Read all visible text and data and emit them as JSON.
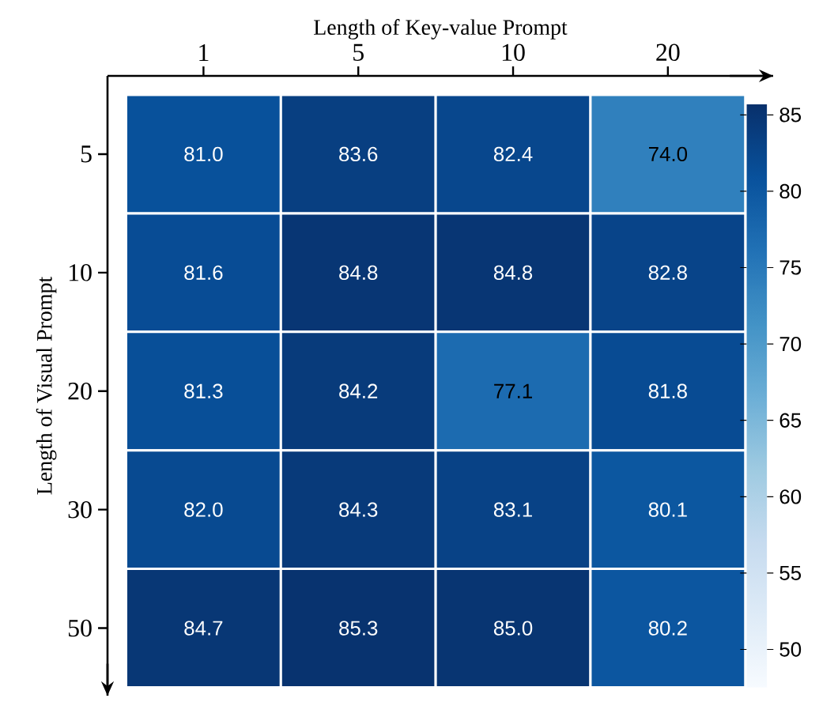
{
  "chart_data": {
    "type": "heatmap",
    "xlabel": "Length of Key-value Prompt",
    "ylabel": "Length of Visual Prompt",
    "categories": [
      "1",
      "5",
      "10",
      "20"
    ],
    "y_categories": [
      "5",
      "10",
      "20",
      "30",
      "50"
    ],
    "cells": [
      [
        81.0,
        83.6,
        82.4,
        74.0
      ],
      [
        81.6,
        84.8,
        84.8,
        82.8
      ],
      [
        81.3,
        84.2,
        77.1,
        81.8
      ],
      [
        82.0,
        84.3,
        83.1,
        80.1
      ],
      [
        84.7,
        85.3,
        85.0,
        80.2
      ]
    ],
    "cell_labels": [
      [
        "81.0",
        "83.6",
        "82.4",
        "74.0"
      ],
      [
        "81.6",
        "84.8",
        "84.8",
        "82.8"
      ],
      [
        "81.3",
        "84.2",
        "77.1",
        "81.8"
      ],
      [
        "82.0",
        "84.3",
        "83.1",
        "80.1"
      ],
      [
        "84.7",
        "85.3",
        "85.0",
        "80.2"
      ]
    ],
    "clim": [
      47.5,
      85.7
    ],
    "cticks": [
      50,
      55,
      60,
      65,
      70,
      75,
      80,
      85
    ]
  }
}
